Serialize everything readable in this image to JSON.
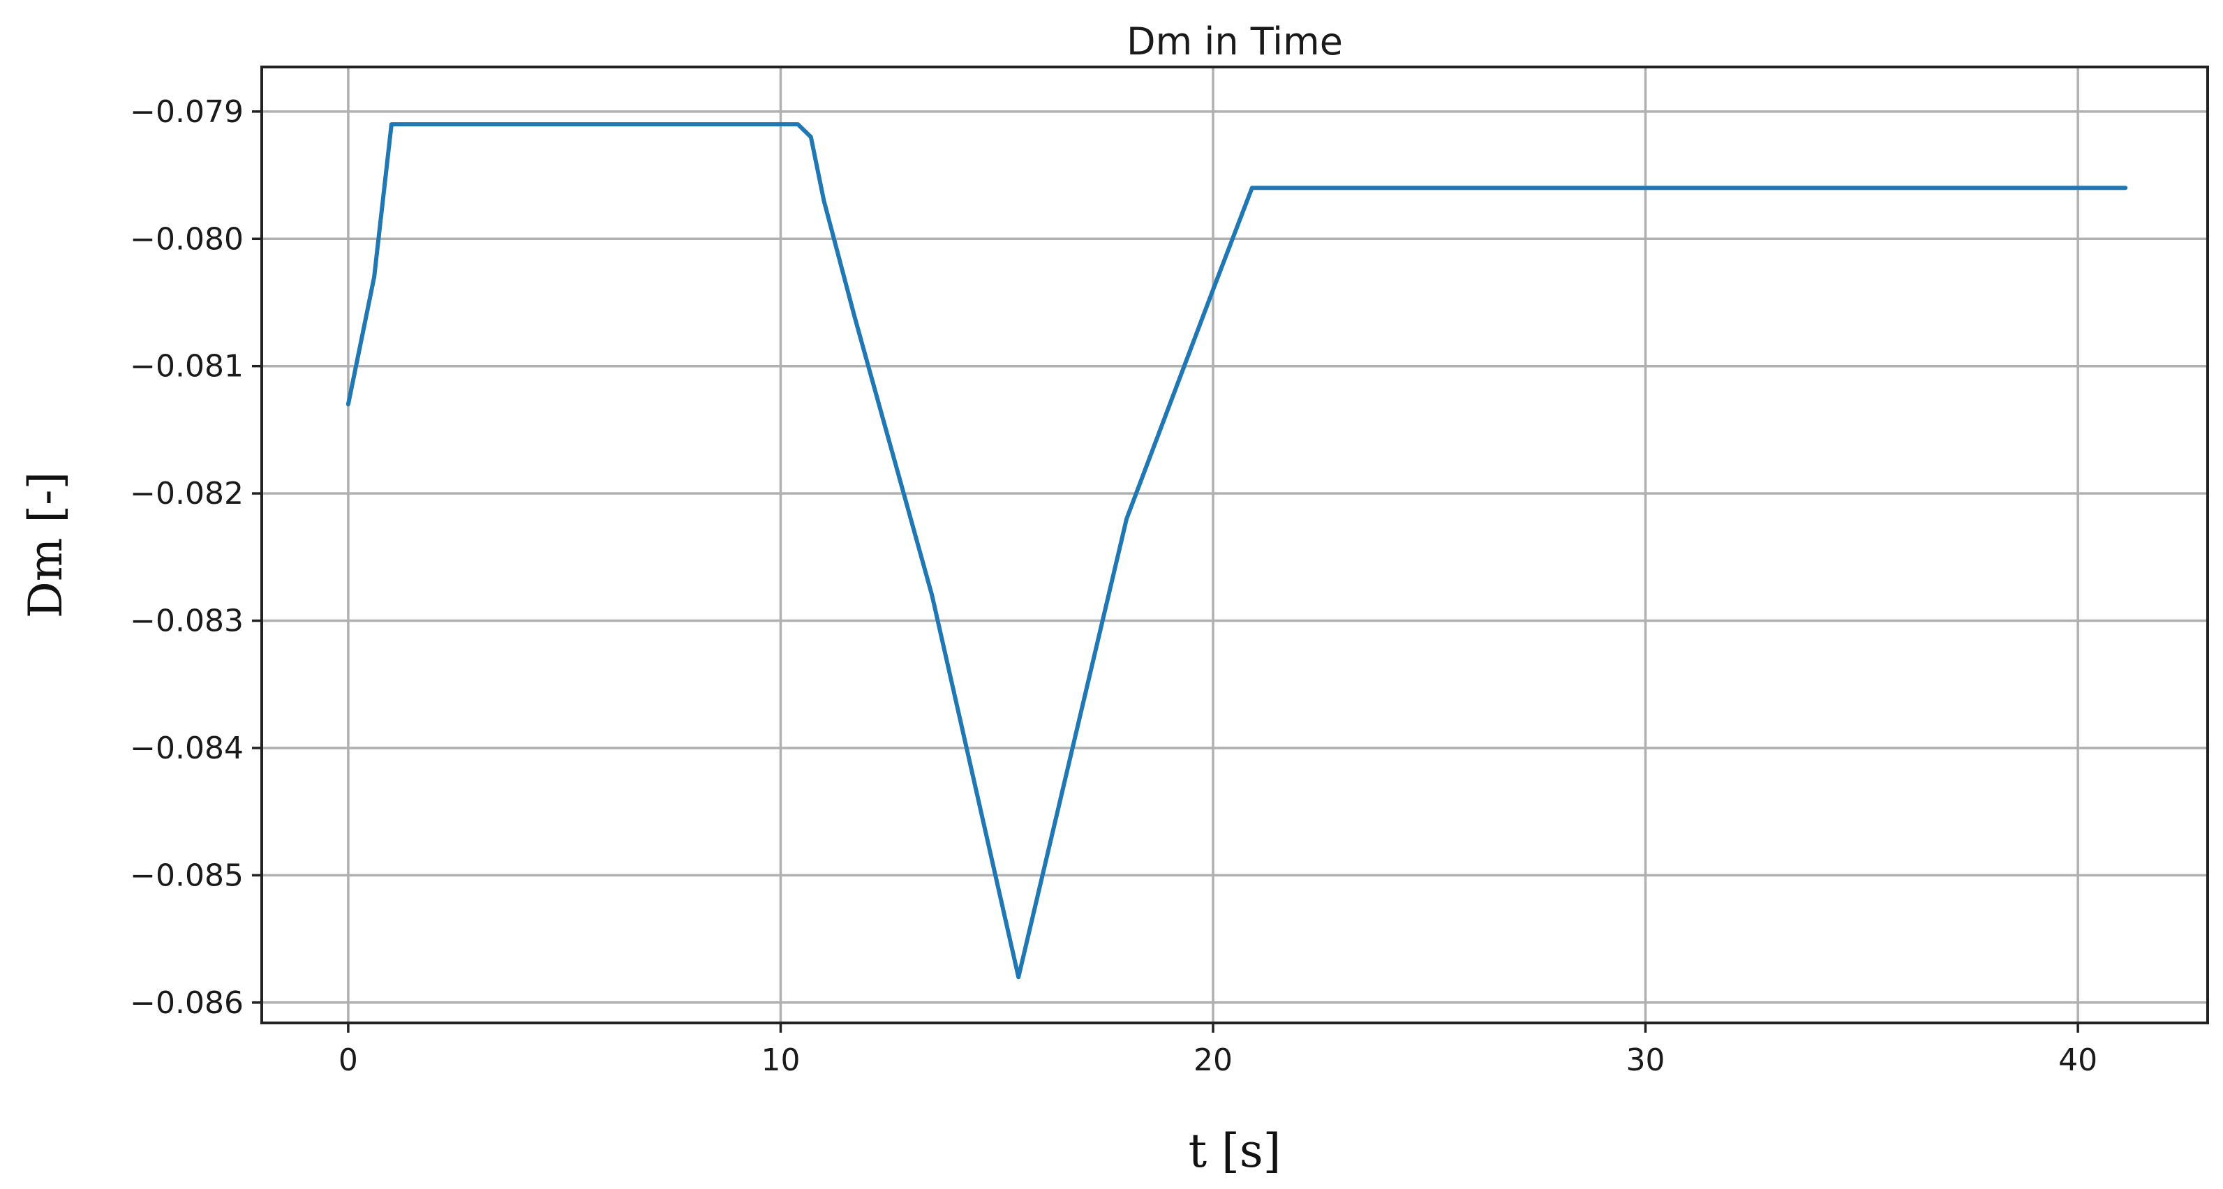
{
  "chart_data": {
    "type": "line",
    "title": "Dm in Time",
    "xlabel": "t [s]",
    "ylabel": "Dm [-]",
    "xlim": [
      -2,
      43
    ],
    "ylim": [
      -0.08616,
      -0.07865
    ],
    "xticks": [
      0,
      10,
      20,
      30,
      40
    ],
    "xtick_labels": [
      "0",
      "10",
      "20",
      "30",
      "40"
    ],
    "yticks": [
      -0.079,
      -0.08,
      -0.081,
      -0.082,
      -0.083,
      -0.084,
      -0.085,
      -0.086
    ],
    "ytick_labels": [
      "−0.079",
      "−0.080",
      "−0.081",
      "−0.082",
      "−0.083",
      "−0.084",
      "−0.085",
      "−0.086"
    ],
    "grid": true,
    "legend": false,
    "series": [
      {
        "color": "#1f77b4",
        "x": [
          0,
          0.6,
          1.0,
          2.0,
          5.0,
          8.0,
          10.4,
          10.7,
          11.0,
          11.7,
          13.5,
          15.5,
          18.0,
          20.0,
          20.9,
          25.0,
          30.0,
          35.0,
          41.1
        ],
        "y": [
          -0.0813,
          -0.0803,
          -0.0791,
          -0.0791,
          -0.0791,
          -0.0791,
          -0.0791,
          -0.0792,
          -0.0797,
          -0.0806,
          -0.0828,
          -0.0858,
          -0.0822,
          -0.0804,
          -0.0796,
          -0.0796,
          -0.0796,
          -0.0796,
          -0.0796
        ]
      }
    ]
  }
}
